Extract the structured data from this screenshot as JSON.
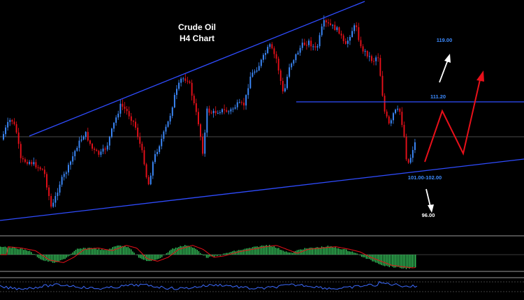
{
  "chart_data": {
    "type": "candlestick",
    "title": "Crude Oil",
    "subtitle": "H4 Chart",
    "colors": {
      "background": "#000000",
      "bull_candle": "#3d8bff",
      "bear_candle": "#e8101a",
      "trendline": "#2f4cff",
      "level_line": "#2f4cff",
      "grid_line": "#4a4a4a",
      "projection_red": "#e8101a",
      "projection_white": "#ffffff",
      "macd_histogram": "#35c35a",
      "macd_signal": "#e8101a",
      "lower_indicator": "#3d6bff",
      "panel_separator": "#9a9a9a"
    },
    "levels": [
      {
        "label": "119.00",
        "value": 119.0,
        "color": "blue"
      },
      {
        "label": "111.20",
        "value": 111.2,
        "color": "blue"
      },
      {
        "label": "101.00-102.00",
        "value": 101.5,
        "color": "blue"
      },
      {
        "label": "96.00",
        "value": 96.0,
        "color": "white"
      }
    ],
    "annotations": [
      {
        "type": "zigzag-projection",
        "color": "red",
        "direction": "up",
        "target": "111.20 then higher"
      },
      {
        "type": "arrow",
        "color": "white",
        "direction": "up",
        "target": "119.00"
      },
      {
        "type": "arrow",
        "color": "white",
        "direction": "down",
        "target": "96.00"
      }
    ],
    "indicators": [
      {
        "name": "MACD-style histogram",
        "panel": "middle"
      },
      {
        "name": "oscillator line",
        "panel": "bottom"
      }
    ],
    "grid": false
  }
}
